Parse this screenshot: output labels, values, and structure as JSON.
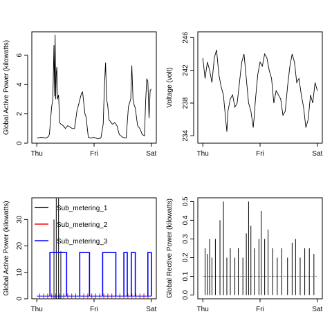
{
  "chart_data": [
    {
      "type": "line",
      "xlabel": "",
      "ylabel": "Global Active Power (kilowatts)",
      "x_tick_labels": [
        "Thu",
        "Fri",
        "Sat"
      ],
      "x_range": [
        0,
        2
      ],
      "ylim": [
        0,
        7.6
      ],
      "y_ticks": [
        0,
        2,
        4,
        6
      ],
      "grid": false,
      "series": [
        {
          "color": "#000000",
          "x": [
            0.0,
            0.08,
            0.16,
            0.2,
            0.22,
            0.26,
            0.28,
            0.3,
            0.31,
            0.32,
            0.33,
            0.34,
            0.35,
            0.36,
            0.38,
            0.4,
            0.42,
            0.46,
            0.5,
            0.54,
            0.58,
            0.62,
            0.66,
            0.7,
            0.74,
            0.78,
            0.8,
            0.84,
            0.86,
            0.9,
            0.94,
            1.0,
            1.06,
            1.12,
            1.16,
            1.18,
            1.2,
            1.22,
            1.24,
            1.26,
            1.28,
            1.32,
            1.36,
            1.4,
            1.44,
            1.5,
            1.56,
            1.6,
            1.64,
            1.66,
            1.68,
            1.7,
            1.72,
            1.76,
            1.8,
            1.84,
            1.88,
            1.9,
            1.92,
            1.94,
            1.96,
            1.98,
            2.0
          ],
          "y": [
            0.35,
            0.4,
            0.35,
            0.45,
            0.6,
            2.5,
            3.0,
            6.7,
            3.2,
            7.4,
            3.0,
            4.8,
            5.2,
            3.0,
            3.3,
            1.4,
            1.3,
            1.2,
            1.0,
            1.2,
            1.1,
            1.0,
            1.0,
            2.2,
            2.8,
            3.4,
            3.5,
            2.0,
            1.8,
            0.4,
            0.35,
            0.4,
            0.3,
            0.35,
            1.3,
            3.8,
            5.5,
            3.0,
            2.5,
            1.6,
            1.5,
            1.3,
            1.4,
            1.2,
            0.6,
            0.4,
            0.35,
            2.5,
            3.0,
            5.3,
            3.0,
            2.6,
            2.4,
            1.2,
            1.0,
            0.6,
            0.5,
            2.8,
            4.4,
            4.2,
            1.7,
            3.6,
            3.7
          ]
        }
      ]
    },
    {
      "type": "line",
      "xlabel": "",
      "ylabel": "Voltage (volt)",
      "x_tick_labels": [
        "Thu",
        "Fri",
        "Sat"
      ],
      "x_range": [
        0,
        2
      ],
      "ylim": [
        233.1,
        246.7
      ],
      "y_ticks": [
        234,
        238,
        242,
        246
      ],
      "grid": false,
      "series": [
        {
          "color": "#000000",
          "x": [
            0.0,
            0.04,
            0.08,
            0.12,
            0.16,
            0.2,
            0.24,
            0.28,
            0.32,
            0.36,
            0.4,
            0.42,
            0.44,
            0.48,
            0.52,
            0.56,
            0.6,
            0.64,
            0.68,
            0.72,
            0.76,
            0.8,
            0.84,
            0.88,
            0.9,
            0.92,
            0.96,
            1.0,
            1.04,
            1.08,
            1.12,
            1.16,
            1.2,
            1.24,
            1.28,
            1.32,
            1.36,
            1.4,
            1.44,
            1.48,
            1.52,
            1.56,
            1.6,
            1.64,
            1.68,
            1.72,
            1.76,
            1.8,
            1.84,
            1.88,
            1.92,
            1.96,
            2.0
          ],
          "y": [
            243.5,
            241.0,
            243.0,
            242.0,
            240.5,
            243.5,
            244.5,
            241.5,
            240.0,
            239.0,
            236.0,
            234.5,
            237.0,
            238.5,
            239.0,
            237.5,
            238.0,
            240.5,
            243.0,
            244.0,
            241.0,
            238.0,
            237.0,
            235.0,
            236.5,
            238.5,
            241.5,
            243.0,
            242.5,
            244.0,
            243.5,
            242.0,
            241.0,
            238.0,
            239.5,
            239.0,
            238.5,
            236.5,
            237.0,
            240.0,
            242.5,
            244.0,
            243.0,
            240.5,
            241.0,
            239.0,
            237.5,
            235.0,
            236.0,
            239.0,
            238.0,
            240.5,
            239.5
          ]
        }
      ]
    },
    {
      "type": "line",
      "xlabel": "",
      "ylabel": "Global Active Power (kilowatts)",
      "x_tick_labels": [
        "Thu",
        "Fri",
        "Sat"
      ],
      "x_range": [
        0,
        2
      ],
      "ylim": [
        0,
        38.2
      ],
      "y_ticks": [
        0,
        10,
        20,
        30
      ],
      "grid": false,
      "legend": {
        "placement": "top-left",
        "entries": [
          "Sub_metering_1",
          "Sub_metering_2",
          "Sub_metering_3"
        ]
      },
      "series": [
        {
          "name": "Sub_metering_1",
          "color": "#000000",
          "spikes": [
            {
              "x": 0.3,
              "y": 30
            },
            {
              "x": 0.34,
              "y": 38
            },
            {
              "x": 0.38,
              "y": 38
            },
            {
              "x": 0.42,
              "y": 18
            }
          ],
          "baseline": 0
        },
        {
          "name": "Sub_metering_2",
          "color": "#ff0000",
          "spikes": [
            {
              "x": 0.05,
              "y": 2
            },
            {
              "x": 0.12,
              "y": 2
            },
            {
              "x": 0.19,
              "y": 2
            },
            {
              "x": 0.26,
              "y": 2
            },
            {
              "x": 0.33,
              "y": 2
            },
            {
              "x": 0.4,
              "y": 2
            },
            {
              "x": 0.47,
              "y": 2
            },
            {
              "x": 0.54,
              "y": 2
            },
            {
              "x": 0.61,
              "y": 2
            },
            {
              "x": 0.68,
              "y": 2
            },
            {
              "x": 0.75,
              "y": 2
            },
            {
              "x": 0.82,
              "y": 2
            },
            {
              "x": 0.89,
              "y": 2
            },
            {
              "x": 0.96,
              "y": 2
            },
            {
              "x": 1.03,
              "y": 2
            },
            {
              "x": 1.1,
              "y": 2
            },
            {
              "x": 1.17,
              "y": 2
            },
            {
              "x": 1.24,
              "y": 2
            },
            {
              "x": 1.31,
              "y": 2
            },
            {
              "x": 1.38,
              "y": 2
            },
            {
              "x": 1.45,
              "y": 2
            },
            {
              "x": 1.52,
              "y": 2
            },
            {
              "x": 1.59,
              "y": 2
            },
            {
              "x": 1.66,
              "y": 2
            },
            {
              "x": 1.73,
              "y": 2
            },
            {
              "x": 1.8,
              "y": 2
            },
            {
              "x": 1.87,
              "y": 2
            },
            {
              "x": 1.94,
              "y": 2
            }
          ],
          "baseline": 0
        },
        {
          "name": "Sub_metering_3",
          "color": "#0000ff",
          "blocks": [
            {
              "x0": 0.23,
              "x1": 0.52,
              "y": 17.5
            },
            {
              "x0": 0.75,
              "x1": 0.92,
              "y": 17.5
            },
            {
              "x0": 1.15,
              "x1": 1.38,
              "y": 17.5
            },
            {
              "x0": 1.52,
              "x1": 1.58,
              "y": 17.5
            },
            {
              "x0": 1.65,
              "x1": 1.72,
              "y": 17.5
            },
            {
              "x0": 1.94,
              "x1": 2.0,
              "y": 17.5
            }
          ],
          "baseline": 1
        }
      ]
    },
    {
      "type": "line",
      "xlabel": "",
      "ylabel": "Global Rective Power (kilowatts)",
      "x_tick_labels": [
        "Thu",
        "Fri",
        "Sat"
      ],
      "x_range": [
        0,
        2
      ],
      "ylim": [
        -0.02,
        0.52
      ],
      "y_ticks": [
        0.0,
        0.1,
        0.2,
        0.3,
        0.4,
        0.5
      ],
      "grid": false,
      "series": [
        {
          "color": "#000000",
          "spikes": [
            {
              "x": 0.04,
              "y": 0.25
            },
            {
              "x": 0.08,
              "y": 0.22
            },
            {
              "x": 0.12,
              "y": 0.3
            },
            {
              "x": 0.16,
              "y": 0.2
            },
            {
              "x": 0.22,
              "y": 0.3
            },
            {
              "x": 0.3,
              "y": 0.4
            },
            {
              "x": 0.36,
              "y": 0.5
            },
            {
              "x": 0.42,
              "y": 0.2
            },
            {
              "x": 0.48,
              "y": 0.25
            },
            {
              "x": 0.56,
              "y": 0.2
            },
            {
              "x": 0.62,
              "y": 0.25
            },
            {
              "x": 0.7,
              "y": 0.2
            },
            {
              "x": 0.76,
              "y": 0.33
            },
            {
              "x": 0.8,
              "y": 0.5
            },
            {
              "x": 0.84,
              "y": 0.37
            },
            {
              "x": 0.9,
              "y": 0.25
            },
            {
              "x": 0.98,
              "y": 0.3
            },
            {
              "x": 1.02,
              "y": 0.45
            },
            {
              "x": 1.08,
              "y": 0.3
            },
            {
              "x": 1.14,
              "y": 0.35
            },
            {
              "x": 1.22,
              "y": 0.25
            },
            {
              "x": 1.3,
              "y": 0.2
            },
            {
              "x": 1.38,
              "y": 0.25
            },
            {
              "x": 1.48,
              "y": 0.2
            },
            {
              "x": 1.56,
              "y": 0.28
            },
            {
              "x": 1.62,
              "y": 0.3
            },
            {
              "x": 1.7,
              "y": 0.2
            },
            {
              "x": 1.78,
              "y": 0.25
            },
            {
              "x": 1.86,
              "y": 0.25
            },
            {
              "x": 1.94,
              "y": 0.22
            }
          ],
          "level": 0.1
        }
      ]
    }
  ]
}
